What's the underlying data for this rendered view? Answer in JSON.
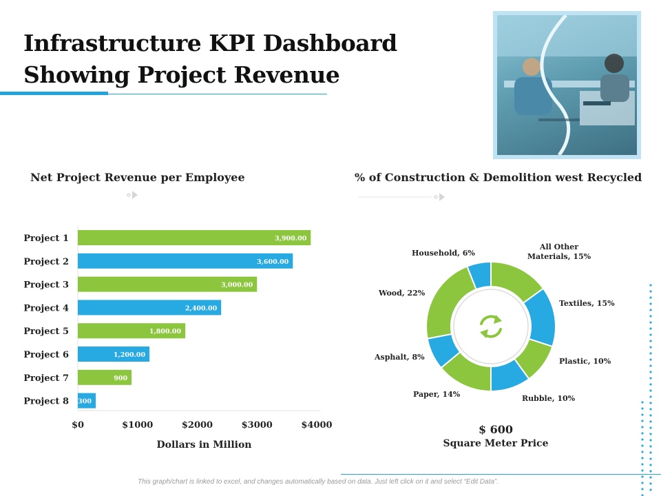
{
  "title": {
    "line1": "Infrastructure KPI Dashboard",
    "line2": "Showing Project Revenue"
  },
  "photo": {
    "icon": "team-meeting-photo"
  },
  "left_section": {
    "title": "Net Project Revenue per Employee"
  },
  "right_section": {
    "title": "% of Construction & Demolition west Recycled"
  },
  "price": {
    "value": "$ 600",
    "label": "Square Meter Price"
  },
  "footnote": "This graph/chart is linked to excel, and changes automatically based on data. Just left click on it and select “Edit Data”.",
  "center_icon": "recycle-arrows-icon",
  "colors": {
    "green": "#8cc63f",
    "blue": "#27a9e1",
    "accent": "#22a5dc"
  },
  "chart_data": [
    {
      "type": "bar",
      "orientation": "horizontal",
      "categories": [
        "Project 1",
        "Project 2",
        "Project 3",
        "Project 4",
        "Project 5",
        "Project 6",
        "Project 7",
        "Project 8"
      ],
      "values": [
        3900,
        3600,
        3000,
        2400,
        1800,
        1200,
        900,
        300
      ],
      "value_labels": [
        "3,900.00",
        "3,600.00",
        "3,000.00",
        "2,400.00",
        "1,800.00",
        "1,200.00",
        "900",
        "300"
      ],
      "bar_colors": [
        "#8cc63f",
        "#27a9e1",
        "#8cc63f",
        "#27a9e1",
        "#8cc63f",
        "#27a9e1",
        "#8cc63f",
        "#27a9e1"
      ],
      "xlim": [
        0,
        4000
      ],
      "xticks": [
        0,
        1000,
        2000,
        3000,
        4000
      ],
      "xtick_labels": [
        "$0",
        "$1000",
        "$2000",
        "$3000",
        "$4000"
      ],
      "xlabel": "Dollars in Million",
      "ylabel": ""
    },
    {
      "type": "pie",
      "donut": true,
      "slices": [
        {
          "label": "All Other Materials, 15%",
          "value": 15,
          "color": "#8cc63f"
        },
        {
          "label": "Textiles, 15%",
          "value": 15,
          "color": "#27a9e1"
        },
        {
          "label": "Plastic, 10%",
          "value": 10,
          "color": "#8cc63f"
        },
        {
          "label": "Rubble, 10%",
          "value": 10,
          "color": "#27a9e1"
        },
        {
          "label": "Paper, 14%",
          "value": 14,
          "color": "#8cc63f"
        },
        {
          "label": "Asphalt, 8%",
          "value": 8,
          "color": "#27a9e1"
        },
        {
          "label": "Wood, 22%",
          "value": 22,
          "color": "#8cc63f"
        },
        {
          "label": "Household, 6%",
          "value": 6,
          "color": "#27a9e1"
        }
      ]
    }
  ]
}
